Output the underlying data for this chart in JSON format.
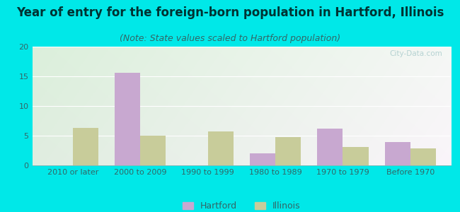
{
  "title": "Year of entry for the foreign-born population in Hartford, Illinois",
  "subtitle": "(Note: State values scaled to Hartford population)",
  "categories": [
    "2010 or later",
    "2000 to 2009",
    "1990 to 1999",
    "1980 to 1989",
    "1970 to 1979",
    "Before 1970"
  ],
  "hartford_values": [
    0,
    15.6,
    0,
    2.0,
    6.2,
    3.9
  ],
  "illinois_values": [
    6.3,
    5.0,
    5.7,
    4.8,
    3.1,
    2.9
  ],
  "hartford_color": "#c8a8d0",
  "illinois_color": "#c8cc9a",
  "background_outer": "#00e8e8",
  "ylim": [
    0,
    20
  ],
  "yticks": [
    0,
    5,
    10,
    15,
    20
  ],
  "title_fontsize": 12,
  "subtitle_fontsize": 9,
  "legend_fontsize": 9,
  "tick_fontsize": 8,
  "bar_width": 0.38
}
